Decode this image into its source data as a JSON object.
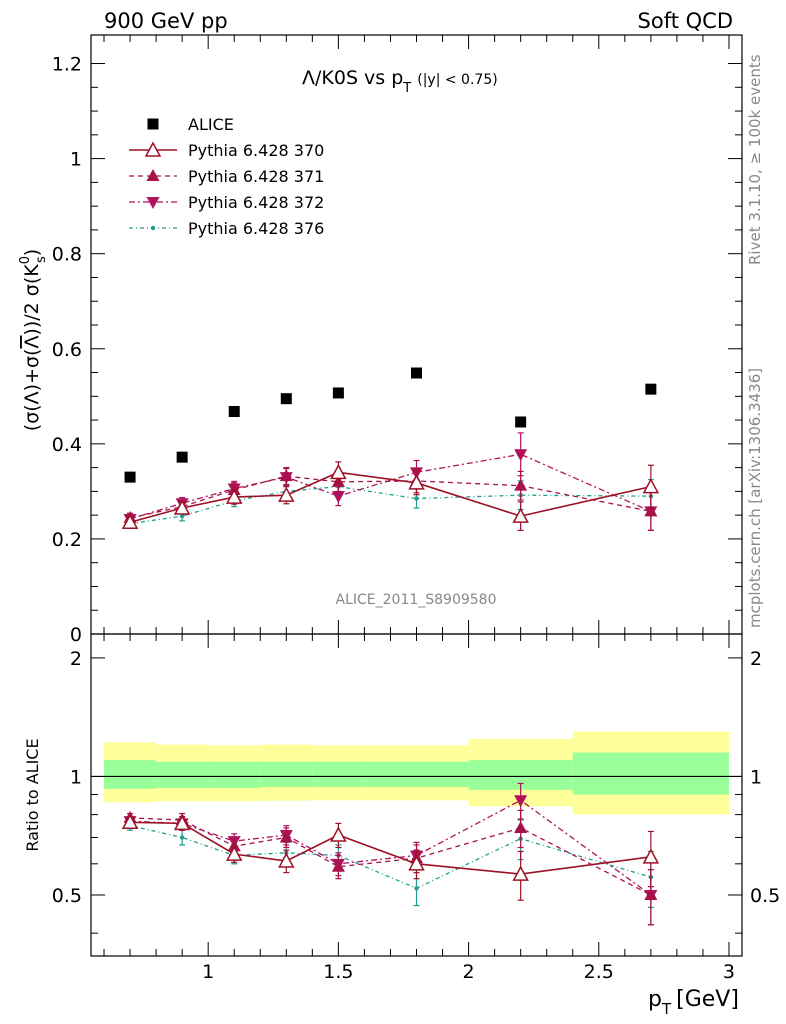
{
  "header": {
    "left": "900 GeV pp",
    "right": "Soft QCD"
  },
  "side_labels": {
    "top": "Rivet 3.1.10, ≥ 100k events",
    "bottom": "mcplots.cern.ch [arXiv:1306.3436]"
  },
  "analysis_id": "ALICE_2011_S8909580",
  "colors": {
    "alice": "#000000",
    "p370": "#9d1126",
    "p371": "#a8124a",
    "p372": "#b0125c",
    "p376": "#1e9e8e",
    "band_green": "#99ff99",
    "band_yellow": "#ffff99"
  },
  "chart_data": [
    {
      "type": "scatter",
      "title_main": "Λ/K0S vs p",
      "title_sub": "T",
      "title_cond": "(|y| < 0.75)",
      "ylabel": "(σ(Λ)+σ(Λ̅))/2 σ(K⁰s)",
      "xlim": [
        0.55,
        3.05
      ],
      "ylim": [
        0,
        1.26
      ],
      "yticks": [
        {
          "value": 0,
          "label": "0"
        },
        {
          "value": 0.2,
          "label": "0.2"
        },
        {
          "value": 0.4,
          "label": "0.4"
        },
        {
          "value": 0.6,
          "label": "0.6"
        },
        {
          "value": 0.8,
          "label": "0.8"
        },
        {
          "value": 1.0,
          "label": "1"
        },
        {
          "value": 1.2,
          "label": "1.2"
        }
      ],
      "legend_position": "top-left",
      "series": [
        {
          "name": "ALICE",
          "marker": "square",
          "line": "none",
          "x": [
            0.7,
            0.9,
            1.1,
            1.3,
            1.5,
            1.8,
            2.2,
            2.7
          ],
          "y": [
            0.33,
            0.372,
            0.468,
            0.495,
            0.507,
            0.549,
            0.446,
            0.515
          ]
        },
        {
          "name": "Pythia 6.428 370",
          "marker": "triangle-up-open",
          "line": "solid",
          "x": [
            0.7,
            0.9,
            1.1,
            1.3,
            1.5,
            1.8,
            2.2,
            2.7
          ],
          "y": [
            0.235,
            0.265,
            0.288,
            0.292,
            0.34,
            0.318,
            0.248,
            0.31
          ],
          "err": [
            0.01,
            0.012,
            0.015,
            0.018,
            0.022,
            0.025,
            0.03,
            0.045
          ]
        },
        {
          "name": "Pythia 6.428 371",
          "marker": "triangle-up",
          "line": "dashed",
          "x": [
            0.7,
            0.9,
            1.1,
            1.3,
            1.5,
            1.8,
            2.2,
            2.7
          ],
          "y": [
            0.244,
            0.268,
            0.303,
            0.332,
            0.32,
            0.322,
            0.312,
            0.258
          ],
          "err": [
            0.01,
            0.012,
            0.015,
            0.018,
            0.02,
            0.025,
            0.03,
            0.04
          ]
        },
        {
          "name": "Pythia 6.428 372",
          "marker": "triangle-down",
          "line": "dashdot",
          "x": [
            0.7,
            0.9,
            1.1,
            1.3,
            1.5,
            1.8,
            2.2,
            2.7
          ],
          "y": [
            0.242,
            0.275,
            0.306,
            0.33,
            0.29,
            0.34,
            0.378,
            0.258
          ],
          "err": [
            0.01,
            0.012,
            0.015,
            0.018,
            0.02,
            0.025,
            0.045,
            0.04
          ]
        },
        {
          "name": "Pythia 6.428 376",
          "marker": "dot",
          "line": "dashdot",
          "x": [
            0.7,
            0.9,
            1.1,
            1.3,
            1.5,
            1.8,
            2.2,
            2.7
          ],
          "y": [
            0.232,
            0.248,
            0.28,
            0.3,
            0.31,
            0.285,
            0.292,
            0.29
          ],
          "err": [
            0.008,
            0.01,
            0.012,
            0.015,
            0.018,
            0.02,
            0.03,
            0.035
          ]
        }
      ]
    },
    {
      "type": "scatter",
      "ylabel": "Ratio to ALICE",
      "xlabel_main": "p",
      "xlabel_sub": "T",
      "xlabel_unit": "[GeV]",
      "xlim": [
        0.55,
        3.05
      ],
      "ylim": [
        0.35,
        2.3
      ],
      "reference_line": 1,
      "xticks": [
        {
          "value": 1,
          "label": "1"
        },
        {
          "value": 1.5,
          "label": "1.5"
        },
        {
          "value": 2,
          "label": "2"
        },
        {
          "value": 2.5,
          "label": "2.5"
        },
        {
          "value": 3,
          "label": "3"
        }
      ],
      "yticks": [
        {
          "value": 0.5,
          "label": "0.5"
        },
        {
          "value": 1,
          "label": "1"
        },
        {
          "value": 2,
          "label": "2"
        }
      ],
      "bands": [
        {
          "x0": 0.6,
          "x1": 0.8,
          "green": [
            0.93,
            1.1
          ],
          "yellow": [
            0.86,
            1.22
          ]
        },
        {
          "x0": 0.8,
          "x1": 1.0,
          "green": [
            0.935,
            1.09
          ],
          "yellow": [
            0.865,
            1.205
          ]
        },
        {
          "x0": 1.0,
          "x1": 1.2,
          "green": [
            0.935,
            1.09
          ],
          "yellow": [
            0.865,
            1.2
          ]
        },
        {
          "x0": 1.2,
          "x1": 1.4,
          "green": [
            0.94,
            1.09
          ],
          "yellow": [
            0.868,
            1.205
          ]
        },
        {
          "x0": 1.4,
          "x1": 1.6,
          "green": [
            0.94,
            1.09
          ],
          "yellow": [
            0.87,
            1.2
          ]
        },
        {
          "x0": 1.6,
          "x1": 2.0,
          "green": [
            0.94,
            1.09
          ],
          "yellow": [
            0.87,
            1.2
          ]
        },
        {
          "x0": 2.0,
          "x1": 2.4,
          "green": [
            0.925,
            1.1
          ],
          "yellow": [
            0.84,
            1.245
          ]
        },
        {
          "x0": 2.4,
          "x1": 3.0,
          "green": [
            0.9,
            1.15
          ],
          "yellow": [
            0.8,
            1.3
          ]
        }
      ],
      "series": [
        {
          "name": "Pythia 6.428 370",
          "x": [
            0.7,
            0.9,
            1.1,
            1.3,
            1.5,
            1.8,
            2.2,
            2.7
          ],
          "y": [
            0.765,
            0.76,
            0.635,
            0.61,
            0.71,
            0.6,
            0.565,
            0.625
          ],
          "err": [
            0.02,
            0.03,
            0.03,
            0.04,
            0.05,
            0.05,
            0.08,
            0.1
          ]
        },
        {
          "name": "Pythia 6.428 371",
          "x": [
            0.7,
            0.9,
            1.1,
            1.3,
            1.5,
            1.8,
            2.2,
            2.7
          ],
          "y": [
            0.785,
            0.775,
            0.665,
            0.7,
            0.59,
            0.62,
            0.74,
            0.5
          ],
          "err": [
            0.02,
            0.03,
            0.03,
            0.04,
            0.04,
            0.05,
            0.08,
            0.08
          ]
        },
        {
          "name": "Pythia 6.428 372",
          "x": [
            0.7,
            0.9,
            1.1,
            1.3,
            1.5,
            1.8,
            2.2,
            2.7
          ],
          "y": [
            0.77,
            0.76,
            0.685,
            0.71,
            0.6,
            0.63,
            0.87,
            0.5
          ],
          "err": [
            0.02,
            0.03,
            0.03,
            0.04,
            0.04,
            0.05,
            0.09,
            0.08
          ]
        },
        {
          "name": "Pythia 6.428 376",
          "x": [
            0.7,
            0.9,
            1.1,
            1.3,
            1.5,
            1.8,
            2.2,
            2.7
          ],
          "y": [
            0.75,
            0.7,
            0.63,
            0.64,
            0.63,
            0.52,
            0.695,
            0.555
          ],
          "err": [
            0.02,
            0.03,
            0.03,
            0.04,
            0.04,
            0.05,
            0.08,
            0.09
          ]
        }
      ]
    }
  ]
}
